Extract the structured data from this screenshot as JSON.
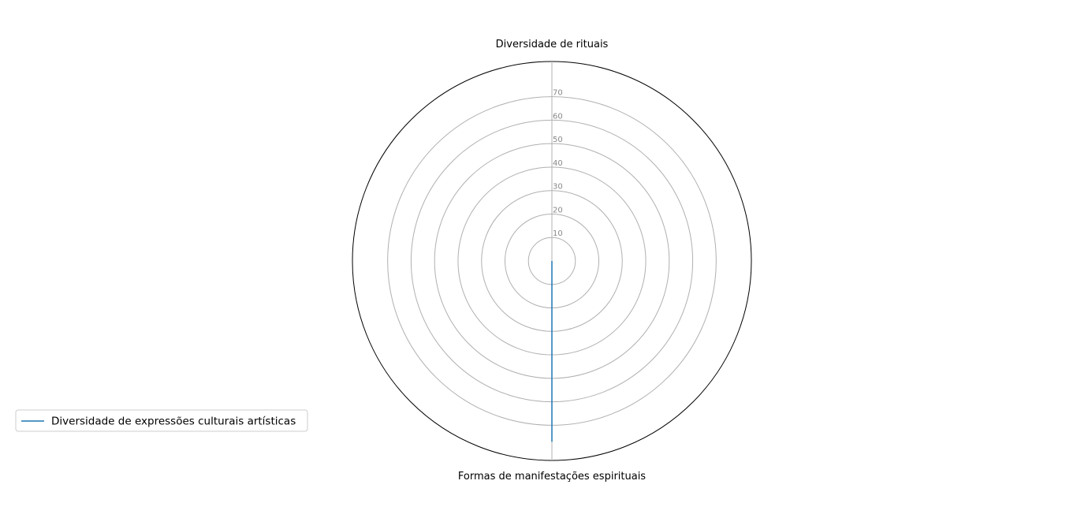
{
  "chart_data": {
    "type": "radar",
    "categories": [
      "Diversidade de rituais",
      "Formas de manifestações espirituais"
    ],
    "series": [
      {
        "name": "Diversidade de expressões culturais artísticas",
        "values": [
          0,
          77
        ],
        "color": "#1f77b4"
      }
    ],
    "rlim": [
      0,
      85
    ],
    "rticks": [
      10,
      20,
      30,
      40,
      50,
      60,
      70
    ],
    "grid": true,
    "legend_position": "lower-left",
    "colors": {
      "grid": "#b0b0b0",
      "frame": "#000000",
      "tick_text": "#888888",
      "legend_border": "#cccccc"
    }
  }
}
